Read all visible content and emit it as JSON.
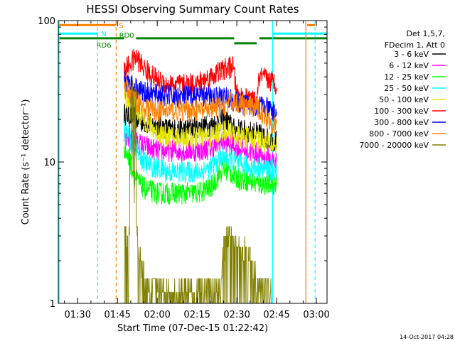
{
  "chart_data": {
    "type": "line",
    "title": "HESSI Observing Summary Count Rates",
    "xlabel": "Start Time (07-Dec-15 01:22:42)",
    "ylabel": "Count Rate (s⁻¹ detector⁻¹)",
    "yscale": "log",
    "ylim": [
      1,
      100
    ],
    "xlim_minutes_after_0100": [
      22.7,
      124.0
    ],
    "x_ticks": [
      "01:30",
      "01:45",
      "02:00",
      "02:15",
      "02:30",
      "02:45",
      "03:00"
    ],
    "x_tick_minutes_after_0100": [
      30,
      45,
      60,
      75,
      90,
      105,
      120
    ],
    "y_ticks": [
      "1",
      "10",
      "100"
    ],
    "y_tick_values": [
      1,
      10,
      100
    ],
    "footer_stamp": "14-Oct-2017 04:28",
    "legend": {
      "header": [
        "Det 1,5,7,",
        "FDecim 1, Att 0"
      ],
      "entries": [
        {
          "label": "3 - 6 keV",
          "color": "#000000"
        },
        {
          "label": "6 - 12 keV",
          "color": "#ff00ff"
        },
        {
          "label": "12 - 25 keV",
          "color": "#00ff00"
        },
        {
          "label": "25 - 50 keV",
          "color": "#00ffff"
        },
        {
          "label": "50 - 100 keV",
          "color": "#e6e600"
        },
        {
          "label": "100 - 300 keV",
          "color": "#ff0000"
        },
        {
          "label": "300 - 800 keV",
          "color": "#0000ff"
        },
        {
          "label": "800 - 7000 keV",
          "color": "#ff8000"
        },
        {
          "label": "7000 - 20000 keV",
          "color": "#808000"
        }
      ]
    },
    "flag_bars": [
      {
        "label": "S",
        "color": "#ff8000",
        "y_value": 93,
        "segments": [
          [
            22.7,
            44.5
          ],
          [
            116.5,
            119.5
          ]
        ]
      },
      {
        "label": "N",
        "color": "#00ffff",
        "y_value": 81,
        "segments": [
          [
            22.7,
            37.5
          ],
          [
            103.5,
            124.0
          ]
        ]
      },
      {
        "label": "RD6",
        "color": "#008000",
        "y_value": 75,
        "segments": [
          [
            22.7,
            43.5
          ]
        ]
      },
      {
        "label": "RD0",
        "color": "#008000",
        "y_value": 75,
        "segments": [
          [
            43.5,
            47.5
          ],
          [
            52.0,
            89.0
          ],
          [
            89.0,
            97.5
          ],
          [
            98.5,
            124.0
          ]
        ]
      }
    ],
    "vertical_markers": [
      {
        "x": 37.5,
        "color": "#00ffff",
        "style": "dashed"
      },
      {
        "x": 44.5,
        "color": "#ff8000",
        "style": "dashed"
      },
      {
        "x": 103.5,
        "color": "#00ffff",
        "style": "solid"
      },
      {
        "x": 23.0,
        "color": "#00ffff",
        "style": "solid"
      },
      {
        "x": 116.0,
        "color": "#ff8000",
        "style": "solid"
      },
      {
        "x": 119.5,
        "color": "#00ffff",
        "style": "dashed"
      }
    ],
    "series": [
      {
        "name": "3 - 6 keV",
        "color": "#000000",
        "x": [
          47.5,
          55,
          60,
          65,
          70,
          75,
          80,
          85,
          87,
          89,
          91,
          93,
          97.5,
          99,
          102,
          105
        ],
        "y": [
          22,
          19,
          18,
          17,
          17,
          17.5,
          18,
          20,
          19,
          17,
          17,
          16.5,
          16,
          15.5,
          14.5,
          14
        ]
      },
      {
        "name": "6 - 12 keV",
        "color": "#ff00ff",
        "x": [
          47.5,
          55,
          60,
          65,
          70,
          75,
          80,
          85,
          87,
          89,
          91,
          93,
          97.5,
          99,
          102,
          105
        ],
        "y": [
          15,
          13,
          12,
          12,
          12,
          12,
          12.5,
          14,
          13.5,
          13,
          12.5,
          12,
          11.5,
          11,
          10.5,
          10
        ]
      },
      {
        "name": "12 - 25 keV",
        "color": "#00ff00",
        "x": [
          47.5,
          52,
          55,
          60,
          65,
          70,
          75,
          80,
          85,
          87,
          89,
          91,
          93,
          97.5,
          99,
          102,
          105
        ],
        "y": [
          13,
          7.5,
          6.5,
          6,
          6,
          6,
          6,
          6.5,
          9,
          8.5,
          8,
          7.5,
          7.5,
          7,
          7,
          7,
          7
        ]
      },
      {
        "name": "25 - 50 keV",
        "color": "#00ffff",
        "x": [
          47.5,
          55,
          60,
          65,
          70,
          75,
          80,
          85,
          87,
          89,
          91,
          93,
          97.5,
          99,
          102,
          105
        ],
        "y": [
          17,
          10,
          9,
          8.5,
          8.5,
          8.5,
          9,
          11,
          10.5,
          10,
          9.5,
          9.5,
          9,
          9,
          9,
          8.5
        ]
      },
      {
        "name": "50 - 100 keV",
        "color": "#e6e600",
        "x": [
          47.5,
          55,
          60,
          65,
          70,
          75,
          80,
          85,
          87,
          89,
          91,
          93,
          97.5,
          99,
          102,
          105
        ],
        "y": [
          30,
          20,
          16,
          15,
          15,
          15,
          15,
          17,
          16.5,
          15.5,
          15,
          15,
          14.5,
          14,
          13.5,
          13
        ]
      },
      {
        "name": "100 - 300 keV",
        "color": "#ff0000",
        "x": [
          47.5,
          50,
          52,
          55,
          60,
          65,
          70,
          75,
          80,
          85,
          87,
          88.5,
          90,
          93,
          97.5,
          98.5,
          102,
          105
        ],
        "y": [
          44,
          50,
          55,
          46,
          38,
          35,
          35,
          36,
          40,
          45,
          46,
          48,
          30,
          28,
          26,
          40,
          38,
          36
        ]
      },
      {
        "name": "300 - 800 keV",
        "color": "#0000ff",
        "x": [
          47.5,
          55,
          60,
          65,
          70,
          75,
          80,
          85,
          87,
          89,
          91,
          93,
          97.5,
          99,
          102,
          105
        ],
        "y": [
          38,
          31,
          30,
          29,
          29,
          29,
          29,
          29,
          28,
          27,
          26,
          26,
          25,
          25,
          23.5,
          22
        ]
      },
      {
        "name": "800 - 7000 keV",
        "color": "#ff8000",
        "x": [
          47.5,
          55,
          60,
          65,
          70,
          75,
          80,
          85,
          87,
          89,
          91,
          93,
          97.5,
          99,
          102,
          105
        ],
        "y": [
          34,
          24,
          23,
          23,
          23,
          23,
          23.5,
          25,
          26,
          27,
          26,
          25,
          24,
          23,
          20,
          18
        ]
      },
      {
        "name": "7000 - 20000 keV",
        "color": "#808000",
        "x": [
          47.5,
          49,
          51,
          53,
          55,
          57,
          60,
          65,
          70,
          75,
          80,
          84,
          85,
          87,
          89,
          91,
          93,
          95,
          97.5,
          99,
          101,
          103
        ],
        "y": [
          3.5,
          2.5,
          7,
          2.2,
          1.5,
          1.4,
          1.3,
          1.2,
          1.2,
          1.2,
          1.3,
          1.2,
          2.5,
          3,
          2.5,
          2.2,
          2.5,
          2,
          1.5,
          1.4,
          1.3,
          1.1
        ]
      }
    ]
  }
}
